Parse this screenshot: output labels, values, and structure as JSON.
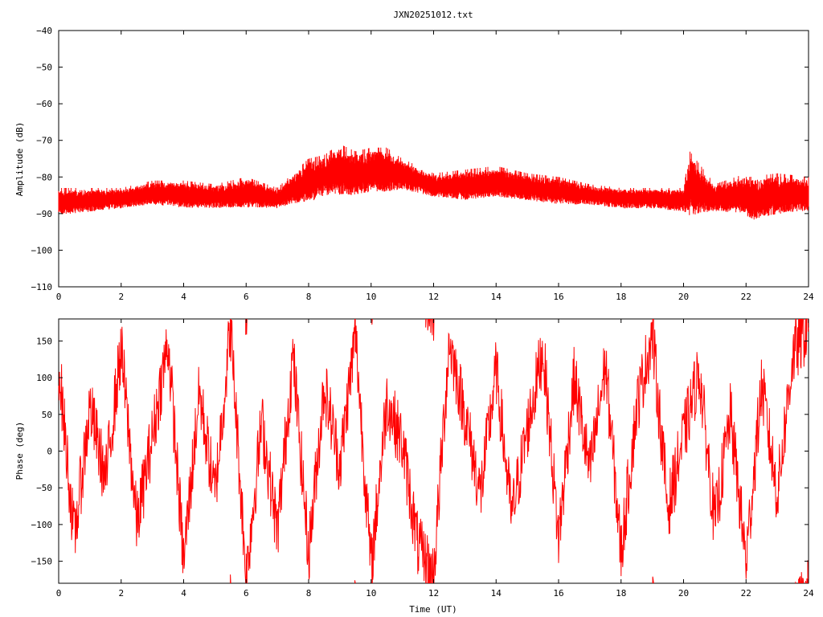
{
  "title": "JXN20251012.txt",
  "chart_data": [
    {
      "type": "line",
      "ylabel": "Amplitude (dB)",
      "xlabel": "",
      "xlim": [
        0,
        24
      ],
      "ylim": [
        -110,
        -40
      ],
      "x_ticks": [
        "0",
        "2",
        "4",
        "6",
        "8",
        "10",
        "12",
        "14",
        "16",
        "18",
        "20",
        "22",
        "24"
      ],
      "y_ticks": [
        "-40",
        "-50",
        "-60",
        "-70",
        "-80",
        "-90",
        "-100",
        "-110"
      ],
      "grid": false,
      "series": [
        {
          "color": "#ff0000",
          "envelope": {
            "x": [
              0,
              1,
              2,
              3,
              4,
              5,
              6,
              7,
              7.5,
              8,
              8.5,
              9,
              9.5,
              10,
              10.5,
              11,
              12,
              13,
              14,
              15,
              16,
              17,
              18,
              19,
              20,
              20.2,
              21,
              22,
              22.1,
              23,
              24
            ],
            "y_max": [
              -83,
              -83,
              -83,
              -81,
              -81,
              -82,
              -80,
              -83,
              -79,
              -75,
              -74,
              -71,
              -73,
              -72,
              -72,
              -75,
              -79,
              -78,
              -77,
              -79,
              -80,
              -82,
              -83,
              -83,
              -83,
              -73,
              -82,
              -79,
              -80,
              -79,
              -80
            ],
            "y_min": [
              -91,
              -90,
              -89,
              -88,
              -89,
              -89,
              -89,
              -89,
              -88,
              -88,
              -86,
              -86,
              -86,
              -85,
              -85,
              -84,
              -86,
              -87,
              -86,
              -87,
              -88,
              -88,
              -89,
              -89,
              -90,
              -92,
              -90,
              -91,
              -93,
              -91,
              -90
            ]
          }
        }
      ]
    },
    {
      "type": "line",
      "ylabel": "Phase (deg)",
      "xlabel": "Time (UT)",
      "xlim": [
        0,
        24
      ],
      "ylim": [
        -180,
        180
      ],
      "x_ticks": [
        "0",
        "2",
        "4",
        "6",
        "8",
        "10",
        "12",
        "14",
        "16",
        "18",
        "20",
        "22",
        "24"
      ],
      "y_ticks": [
        "150",
        "100",
        "50",
        "0",
        "-50",
        "-100",
        "-150"
      ],
      "grid": false,
      "series": [
        {
          "color": "#ff0000",
          "phase_wrapped": true,
          "x": [
            0,
            0.5,
            1,
            1.5,
            2,
            2.5,
            3,
            3.5,
            4,
            4.5,
            5,
            5.5,
            6,
            6.5,
            7,
            7.5,
            8,
            8.5,
            9,
            9.5,
            10,
            10.5,
            11,
            11.5,
            12,
            12.5,
            13,
            13.5,
            14,
            14.5,
            15,
            15.5,
            16,
            16.5,
            17,
            17.5,
            18,
            18.5,
            19,
            19.5,
            20,
            20.5,
            21,
            21.5,
            22,
            22.5,
            23,
            23.5,
            24
          ],
          "y": [
            120,
            -120,
            60,
            -40,
            140,
            -100,
            20,
            150,
            -150,
            80,
            -60,
            170,
            -170,
            40,
            -110,
            130,
            -140,
            90,
            -20,
            160,
            -160,
            70,
            10,
            -130,
            -170,
            150,
            50,
            -60,
            110,
            -90,
            30,
            140,
            -120,
            100,
            -30,
            120,
            -140,
            60,
            160,
            -80,
            20,
            110,
            -100,
            50,
            -150,
            90,
            -60,
            130,
            170
          ]
        }
      ]
    }
  ]
}
